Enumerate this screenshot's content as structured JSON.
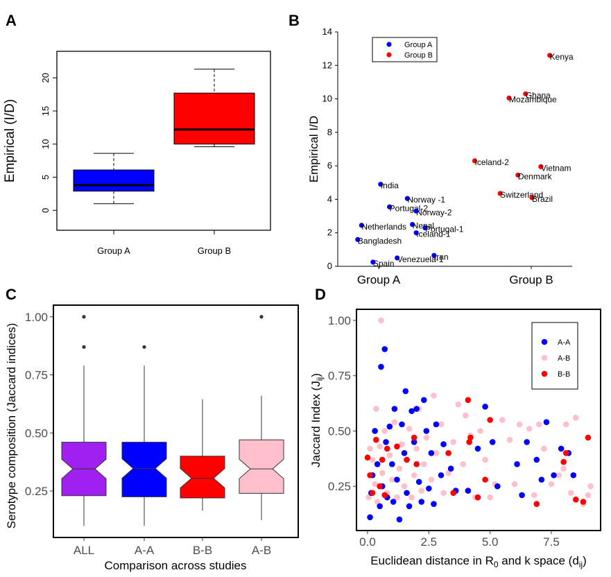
{
  "chart_data": [
    {
      "panel": "A",
      "type": "box",
      "ylabel": "Empirical (I/D)",
      "ylim": [
        -3,
        24
      ],
      "yticks": [
        "0",
        "5",
        "10",
        "15",
        "20"
      ],
      "categories": [
        "Group A",
        "Group B"
      ],
      "boxes": [
        {
          "name": "Group A",
          "min": 1.0,
          "q1": 2.9,
          "median": 3.8,
          "q3": 6.1,
          "max": 8.6,
          "color": "#0000ff"
        },
        {
          "name": "Group B",
          "min": 9.6,
          "q1": 10.0,
          "median": 12.2,
          "q3": 17.7,
          "max": 21.3,
          "color": "#ff0000"
        }
      ]
    },
    {
      "panel": "B",
      "type": "scatter",
      "ylabel": "Empirical I/D",
      "ylim": [
        0,
        14
      ],
      "yticks": [
        "0",
        "2",
        "4",
        "6",
        "8",
        "10",
        "12",
        "14"
      ],
      "xcategories": [
        "Group A",
        "Group B"
      ],
      "legend": [
        {
          "label": "Group A",
          "color": "#0000ff"
        },
        {
          "label": "Group B",
          "color": "#ff0000"
        }
      ],
      "points": [
        {
          "label": "India",
          "x": 0.11,
          "y": 4.9,
          "group": "A"
        },
        {
          "label": "Norway -1",
          "x": 0.32,
          "y": 4.05,
          "group": "A"
        },
        {
          "label": "Portugal-2",
          "x": 0.18,
          "y": 3.55,
          "group": "A"
        },
        {
          "label": "Norway-2",
          "x": 0.39,
          "y": 3.3,
          "group": "A"
        },
        {
          "label": "Netherlands",
          "x": -0.04,
          "y": 2.45,
          "group": "A"
        },
        {
          "label": "Nepal",
          "x": 0.36,
          "y": 2.5,
          "group": "A"
        },
        {
          "label": "Portugal-1",
          "x": 0.46,
          "y": 2.3,
          "group": "A"
        },
        {
          "label": "Iceland-1",
          "x": 0.39,
          "y": 2.0,
          "group": "A"
        },
        {
          "label": "Bangladesh",
          "x": -0.07,
          "y": 1.6,
          "group": "A"
        },
        {
          "label": "Iran",
          "x": 0.53,
          "y": 0.65,
          "group": "A"
        },
        {
          "label": "Venezuela-1",
          "x": 0.24,
          "y": 0.5,
          "group": "A"
        },
        {
          "label": "Spain",
          "x": 0.05,
          "y": 0.25,
          "group": "A"
        },
        {
          "label": "Kenya",
          "x": 1.44,
          "y": 12.6,
          "group": "B"
        },
        {
          "label": "Ghana",
          "x": 1.25,
          "y": 10.3,
          "group": "B"
        },
        {
          "label": "Mozambique",
          "x": 1.12,
          "y": 10.05,
          "group": "B"
        },
        {
          "label": "Iceland-2",
          "x": 0.85,
          "y": 6.3,
          "group": "B"
        },
        {
          "label": "Vietnam",
          "x": 1.37,
          "y": 5.95,
          "group": "B"
        },
        {
          "label": "Denmark",
          "x": 1.19,
          "y": 5.45,
          "group": "B"
        },
        {
          "label": "Switzerland",
          "x": 1.05,
          "y": 4.35,
          "group": "B"
        },
        {
          "label": "Brazil",
          "x": 1.3,
          "y": 4.1,
          "group": "B"
        }
      ]
    },
    {
      "panel": "C",
      "type": "box",
      "notched": true,
      "ylabel": "Serotype composition (Jaccard indices)",
      "xlabel": "Comparison across studies",
      "ylim": [
        0.05,
        1.05
      ],
      "yticks": [
        "0.25",
        "0.50",
        "0.75",
        "1.00"
      ],
      "categories": [
        "ALL",
        "A-A",
        "B-B",
        "A-B"
      ],
      "boxes": [
        {
          "name": "ALL",
          "min": 0.1,
          "q1": 0.23,
          "median": 0.345,
          "q3": 0.46,
          "max": 0.79,
          "color": "#a020f0",
          "outliers": [
            0.87,
            1.0
          ]
        },
        {
          "name": "A-A",
          "min": 0.1,
          "q1": 0.225,
          "median": 0.347,
          "q3": 0.46,
          "max": 0.79,
          "color": "#0000ff",
          "outliers": [
            0.87
          ]
        },
        {
          "name": "B-B",
          "min": 0.165,
          "q1": 0.22,
          "median": 0.305,
          "q3": 0.4,
          "max": 0.645,
          "color": "#ff0000",
          "outliers": []
        },
        {
          "name": "A-B",
          "min": 0.125,
          "q1": 0.24,
          "median": 0.345,
          "q3": 0.47,
          "max": 0.66,
          "color": "#ffc0cb",
          "outliers": [
            1.0
          ]
        }
      ]
    },
    {
      "panel": "D",
      "type": "scatter",
      "ylabel": "Jaccard Index (J",
      "ylabel_sub": "ij",
      "xlabel": "Euclidean distance in R",
      "xlabel_sub1": "0",
      "xlabel_mid": " and k space (d",
      "xlabel_sub2": "ij",
      "xlim": [
        -0.6,
        9.4
      ],
      "ylim": [
        0.05,
        1.05
      ],
      "xticks": [
        "0.0",
        "2.5",
        "5.0",
        "7.5"
      ],
      "yticks": [
        "0.25",
        "0.50",
        "0.75",
        "1.00"
      ],
      "legend": [
        {
          "label": "A-A",
          "color": "#0000ff"
        },
        {
          "label": "A-B",
          "color": "#ffc0cb"
        },
        {
          "label": "B-B",
          "color": "#ff0000"
        }
      ],
      "series": [
        {
          "name": "A-A",
          "color": "#0000ff",
          "points": [
            [
              0.1,
              0.11
            ],
            [
              0.15,
              0.22
            ],
            [
              0.2,
              0.3
            ],
            [
              0.3,
              0.5
            ],
            [
              0.4,
              0.35
            ],
            [
              0.5,
              0.16
            ],
            [
              0.55,
              0.79
            ],
            [
              0.6,
              0.25
            ],
            [
              0.7,
              0.87
            ],
            [
              0.75,
              0.45
            ],
            [
              0.8,
              0.2
            ],
            [
              0.9,
              0.52
            ],
            [
              1.0,
              0.35
            ],
            [
              1.05,
              0.18
            ],
            [
              1.1,
              0.6
            ],
            [
              1.2,
              0.28
            ],
            [
              1.3,
              0.1
            ],
            [
              1.4,
              0.53
            ],
            [
              1.5,
              0.4
            ],
            [
              1.55,
              0.68
            ],
            [
              1.6,
              0.22
            ],
            [
              1.7,
              0.16
            ],
            [
              1.8,
              0.59
            ],
            [
              1.9,
              0.45
            ],
            [
              2.0,
              0.6
            ],
            [
              2.1,
              0.27
            ],
            [
              2.2,
              0.18
            ],
            [
              2.3,
              0.64
            ],
            [
              2.4,
              0.5
            ],
            [
              2.5,
              0.24
            ],
            [
              2.6,
              0.4
            ],
            [
              2.7,
              0.17
            ],
            [
              2.8,
              0.53
            ],
            [
              3.0,
              0.3
            ],
            [
              3.1,
              0.44
            ],
            [
              3.4,
              0.33
            ],
            [
              3.6,
              0.23
            ],
            [
              4.1,
              0.23
            ],
            [
              4.5,
              0.42
            ],
            [
              4.8,
              0.61
            ],
            [
              5.1,
              0.45
            ],
            [
              5.3,
              0.25
            ],
            [
              6.1,
              0.35
            ],
            [
              6.3,
              0.21
            ],
            [
              6.5,
              0.45
            ],
            [
              6.9,
              0.37
            ],
            [
              7.1,
              0.28
            ],
            [
              7.3,
              0.54
            ],
            [
              7.6,
              0.3
            ],
            [
              7.9,
              0.42
            ],
            [
              8.2,
              0.4
            ],
            [
              8.4,
              0.3
            ]
          ]
        },
        {
          "name": "A-B",
          "color": "#ffc0cb",
          "points": [
            [
              0.05,
              0.2
            ],
            [
              0.1,
              0.42
            ],
            [
              0.2,
              0.37
            ],
            [
              0.3,
              0.26
            ],
            [
              0.35,
              0.6
            ],
            [
              0.4,
              0.18
            ],
            [
              0.5,
              0.43
            ],
            [
              0.55,
              1.0
            ],
            [
              0.6,
              0.31
            ],
            [
              0.7,
              0.5
            ],
            [
              0.8,
              0.22
            ],
            [
              0.9,
              0.39
            ],
            [
              1.0,
              0.28
            ],
            [
              1.1,
              0.54
            ],
            [
              1.2,
              0.2
            ],
            [
              1.3,
              0.33
            ],
            [
              1.4,
              0.44
            ],
            [
              1.5,
              0.25
            ],
            [
              1.6,
              0.37
            ],
            [
              1.7,
              0.51
            ],
            [
              1.8,
              0.2
            ],
            [
              1.9,
              0.3
            ],
            [
              2.0,
              0.42
            ],
            [
              2.1,
              0.6
            ],
            [
              2.2,
              0.23
            ],
            [
              2.3,
              0.35
            ],
            [
              2.4,
              0.47
            ],
            [
              2.6,
              0.28
            ],
            [
              2.7,
              0.66
            ],
            [
              2.8,
              0.4
            ],
            [
              3.0,
              0.53
            ],
            [
              3.1,
              0.22
            ],
            [
              3.3,
              0.31
            ],
            [
              3.5,
              0.45
            ],
            [
              3.7,
              0.62
            ],
            [
              3.9,
              0.35
            ],
            [
              4.0,
              0.57
            ],
            [
              4.2,
              0.48
            ],
            [
              4.4,
              0.2
            ],
            [
              4.6,
              0.5
            ],
            [
              4.8,
              0.37
            ],
            [
              5.0,
              0.2
            ],
            [
              5.2,
              0.26
            ],
            [
              5.5,
              0.55
            ],
            [
              5.8,
              0.46
            ],
            [
              6.0,
              0.26
            ],
            [
              6.2,
              0.53
            ],
            [
              6.6,
              0.51
            ],
            [
              6.8,
              0.21
            ],
            [
              7.0,
              0.53
            ],
            [
              7.2,
              0.42
            ],
            [
              7.5,
              0.26
            ],
            [
              7.8,
              0.3
            ],
            [
              8.0,
              0.33
            ],
            [
              8.1,
              0.53
            ],
            [
              8.3,
              0.22
            ],
            [
              8.5,
              0.56
            ],
            [
              8.8,
              0.17
            ],
            [
              9.0,
              0.21
            ],
            [
              9.1,
              0.25
            ]
          ]
        },
        {
          "name": "B-B",
          "color": "#ff0000",
          "points": [
            [
              0.0,
              0.38
            ],
            [
              0.1,
              0.3
            ],
            [
              0.2,
              0.22
            ],
            [
              0.35,
              0.46
            ],
            [
              0.5,
              0.25
            ],
            [
              0.6,
              0.37
            ],
            [
              0.7,
              0.21
            ],
            [
              0.8,
              0.42
            ],
            [
              1.2,
              0.43
            ],
            [
              1.6,
              0.37
            ],
            [
              1.9,
              0.47
            ],
            [
              2.0,
              0.35
            ],
            [
              3.3,
              0.4
            ],
            [
              3.5,
              0.22
            ],
            [
              4.1,
              0.64
            ],
            [
              4.15,
              0.45
            ],
            [
              4.2,
              0.47
            ],
            [
              4.5,
              0.2
            ],
            [
              4.8,
              0.28
            ],
            [
              5.0,
              0.55
            ],
            [
              6.9,
              0.17
            ],
            [
              8.0,
              0.36
            ],
            [
              8.1,
              0.4
            ],
            [
              8.5,
              0.19
            ],
            [
              8.8,
              0.18
            ],
            [
              9.0,
              0.47
            ]
          ]
        }
      ]
    }
  ]
}
